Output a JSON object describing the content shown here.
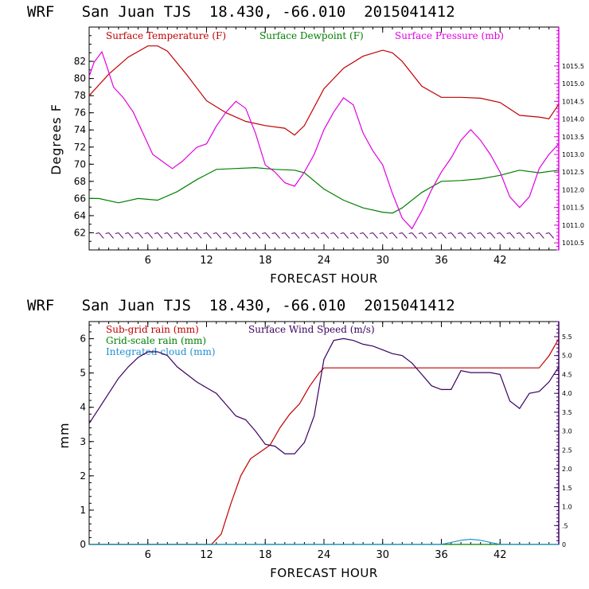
{
  "chart_data": [
    {
      "type": "line",
      "title": "WRF   San Juan TJS  18.430, -66.010  2015041412",
      "xlabel": "FORECAST HOUR",
      "ylabel": "Degrees F",
      "xlim": [
        0,
        48
      ],
      "ylim": [
        60,
        86
      ],
      "y2lim": [
        1010.3,
        1016.6
      ],
      "x_ticks": [
        "6",
        "12",
        "18",
        "24",
        "30",
        "36",
        "42"
      ],
      "y_ticks": [
        "62",
        "64",
        "66",
        "68",
        "70",
        "72",
        "74",
        "76",
        "78",
        "80",
        "82"
      ],
      "y2_ticks": [
        "1010.5",
        "1011.0",
        "1011.5",
        "1012.0",
        "1012.5",
        "1013.0",
        "1013.5",
        "1014.0",
        "1014.5",
        "1015.0",
        "1015.5"
      ],
      "legend": [
        "Surface Temperature (F)",
        "Surface Dewpoint (F)",
        "Surface Pressure (mb)"
      ],
      "series": [
        {
          "name": "Surface Temperature (F)",
          "axis": "left",
          "color": "#c00000",
          "x": [
            0,
            2,
            4,
            6,
            7,
            8,
            10,
            12,
            14,
            16,
            18,
            20,
            21,
            22,
            24,
            26,
            28,
            30,
            31,
            32,
            34,
            36,
            38,
            40,
            42,
            44,
            46,
            47,
            48
          ],
          "y": [
            78,
            80.5,
            82.5,
            83.8,
            83.8,
            83.2,
            80.4,
            77.4,
            76,
            75,
            74.5,
            74.2,
            73.4,
            74.5,
            78.8,
            81.2,
            82.6,
            83.3,
            83,
            82,
            79.1,
            77.8,
            77.8,
            77.7,
            77.2,
            75.7,
            75.5,
            75.3,
            77
          ]
        },
        {
          "name": "Surface Dewpoint (F)",
          "axis": "left",
          "color": "#008000",
          "x": [
            0,
            1,
            3,
            5,
            7,
            9,
            11,
            13,
            15,
            17,
            19,
            21,
            22,
            24,
            26,
            28,
            30,
            31,
            32,
            34,
            36,
            38,
            40,
            42,
            44,
            46,
            48
          ],
          "y": [
            66,
            66,
            65.5,
            66,
            65.8,
            66.8,
            68.2,
            69.4,
            69.5,
            69.6,
            69.4,
            69.3,
            69,
            67.1,
            65.8,
            64.9,
            64.4,
            64.3,
            64.9,
            66.7,
            68,
            68.1,
            68.3,
            68.7,
            69.3,
            69,
            69.3
          ]
        },
        {
          "name": "Surface Pressure (mb)",
          "axis": "right",
          "color": "#e000e0",
          "x": [
            0,
            0.5,
            1.3,
            1.8,
            2.5,
            3.5,
            4.5,
            5.5,
            6.5,
            7.5,
            8.5,
            9.5,
            11,
            12,
            13,
            14,
            15,
            16,
            17,
            18,
            19,
            20,
            21,
            22,
            23,
            24,
            25,
            26,
            27,
            28,
            29,
            30,
            31,
            32,
            33,
            34,
            35,
            36,
            37,
            38,
            39,
            40,
            41,
            42,
            43,
            44,
            45,
            46,
            47,
            48
          ],
          "y": [
            1015.2,
            1015.6,
            1015.9,
            1015.5,
            1014.9,
            1014.6,
            1014.2,
            1013.6,
            1013.0,
            1012.8,
            1012.6,
            1012.8,
            1013.2,
            1013.3,
            1013.8,
            1014.2,
            1014.5,
            1014.3,
            1013.6,
            1012.7,
            1012.5,
            1012.2,
            1012.1,
            1012.5,
            1013.0,
            1013.7,
            1014.2,
            1014.6,
            1014.4,
            1013.6,
            1013.1,
            1012.7,
            1011.9,
            1011.2,
            1010.9,
            1011.4,
            1012.0,
            1012.5,
            1012.9,
            1013.4,
            1013.7,
            1013.4,
            1013.0,
            1012.5,
            1011.8,
            1011.5,
            1011.8,
            1012.6,
            1013.0,
            1013.3
          ]
        }
      ],
      "wind_barbs_at_y": 62
    },
    {
      "type": "line",
      "title": "WRF   San Juan TJS  18.430, -66.010  2015041412",
      "xlabel": "FORECAST HOUR",
      "ylabel": "mm",
      "xlim": [
        0,
        48
      ],
      "ylim": [
        0,
        6.5
      ],
      "y2lim": [
        0,
        5.9
      ],
      "x_ticks": [
        "6",
        "12",
        "18",
        "24",
        "30",
        "36",
        "42"
      ],
      "y_ticks": [
        "0",
        "1",
        "2",
        "3",
        "4",
        "5",
        "6"
      ],
      "y2_ticks": [
        "0",
        ".5",
        "1.0",
        "1.5",
        "2.0",
        "2.5",
        "3.0",
        "3.5",
        "4.0",
        "4.5",
        "5.0",
        "5.5"
      ],
      "legend": [
        "Sub-grid rain (mm)",
        "Grid-scale rain (mm)",
        "Integrated cloud (mm)",
        "Surface Wind Speed (m/s)"
      ],
      "series": [
        {
          "name": "Sub-grid rain (mm)",
          "axis": "left",
          "color": "#c00000",
          "x": [
            0,
            12.5,
            13.5,
            14.5,
            15.5,
            16.5,
            17.5,
            18.5,
            19.5,
            20.5,
            21.5,
            22.5,
            23.5,
            24,
            30,
            36,
            42,
            46,
            47,
            48
          ],
          "y": [
            0,
            0,
            0.3,
            1.2,
            2.0,
            2.5,
            2.7,
            2.9,
            3.4,
            3.8,
            4.1,
            4.6,
            5.0,
            5.15,
            5.15,
            5.15,
            5.15,
            5.15,
            5.5,
            6.0
          ]
        },
        {
          "name": "Grid-scale rain (mm)",
          "axis": "left",
          "color": "#008000",
          "x": [
            0,
            48
          ],
          "y": [
            0,
            0
          ]
        },
        {
          "name": "Integrated cloud (mm)",
          "axis": "left",
          "color": "#1e90d0",
          "x": [
            0,
            36,
            37,
            38,
            39,
            40,
            41,
            42,
            48
          ],
          "y": [
            0,
            0,
            0.06,
            0.12,
            0.15,
            0.12,
            0.06,
            0,
            0
          ]
        },
        {
          "name": "Surface Wind Speed (m/s)",
          "axis": "right",
          "color": "#3a0060",
          "x": [
            0,
            1,
            2,
            3,
            4,
            5,
            6,
            7,
            8,
            9,
            10,
            11,
            12,
            13,
            14,
            15,
            16,
            17,
            18,
            19,
            20,
            21,
            22,
            23,
            24,
            25,
            26,
            27,
            28,
            29,
            30,
            31,
            32,
            33,
            34,
            35,
            36,
            37,
            38,
            39,
            40,
            41,
            42,
            43,
            44,
            45,
            46,
            47,
            48
          ],
          "y": [
            3.2,
            3.6,
            4.0,
            4.4,
            4.7,
            4.95,
            5.1,
            5.1,
            5.0,
            4.7,
            4.5,
            4.3,
            4.15,
            4.0,
            3.7,
            3.4,
            3.3,
            3.0,
            2.65,
            2.6,
            2.4,
            2.4,
            2.7,
            3.4,
            4.9,
            5.4,
            5.45,
            5.4,
            5.3,
            5.25,
            5.15,
            5.05,
            5.0,
            4.8,
            4.5,
            4.2,
            4.1,
            4.1,
            4.6,
            4.55,
            4.55,
            4.55,
            4.5,
            3.8,
            3.6,
            4.0,
            4.05,
            4.3,
            4.7
          ]
        }
      ]
    }
  ]
}
